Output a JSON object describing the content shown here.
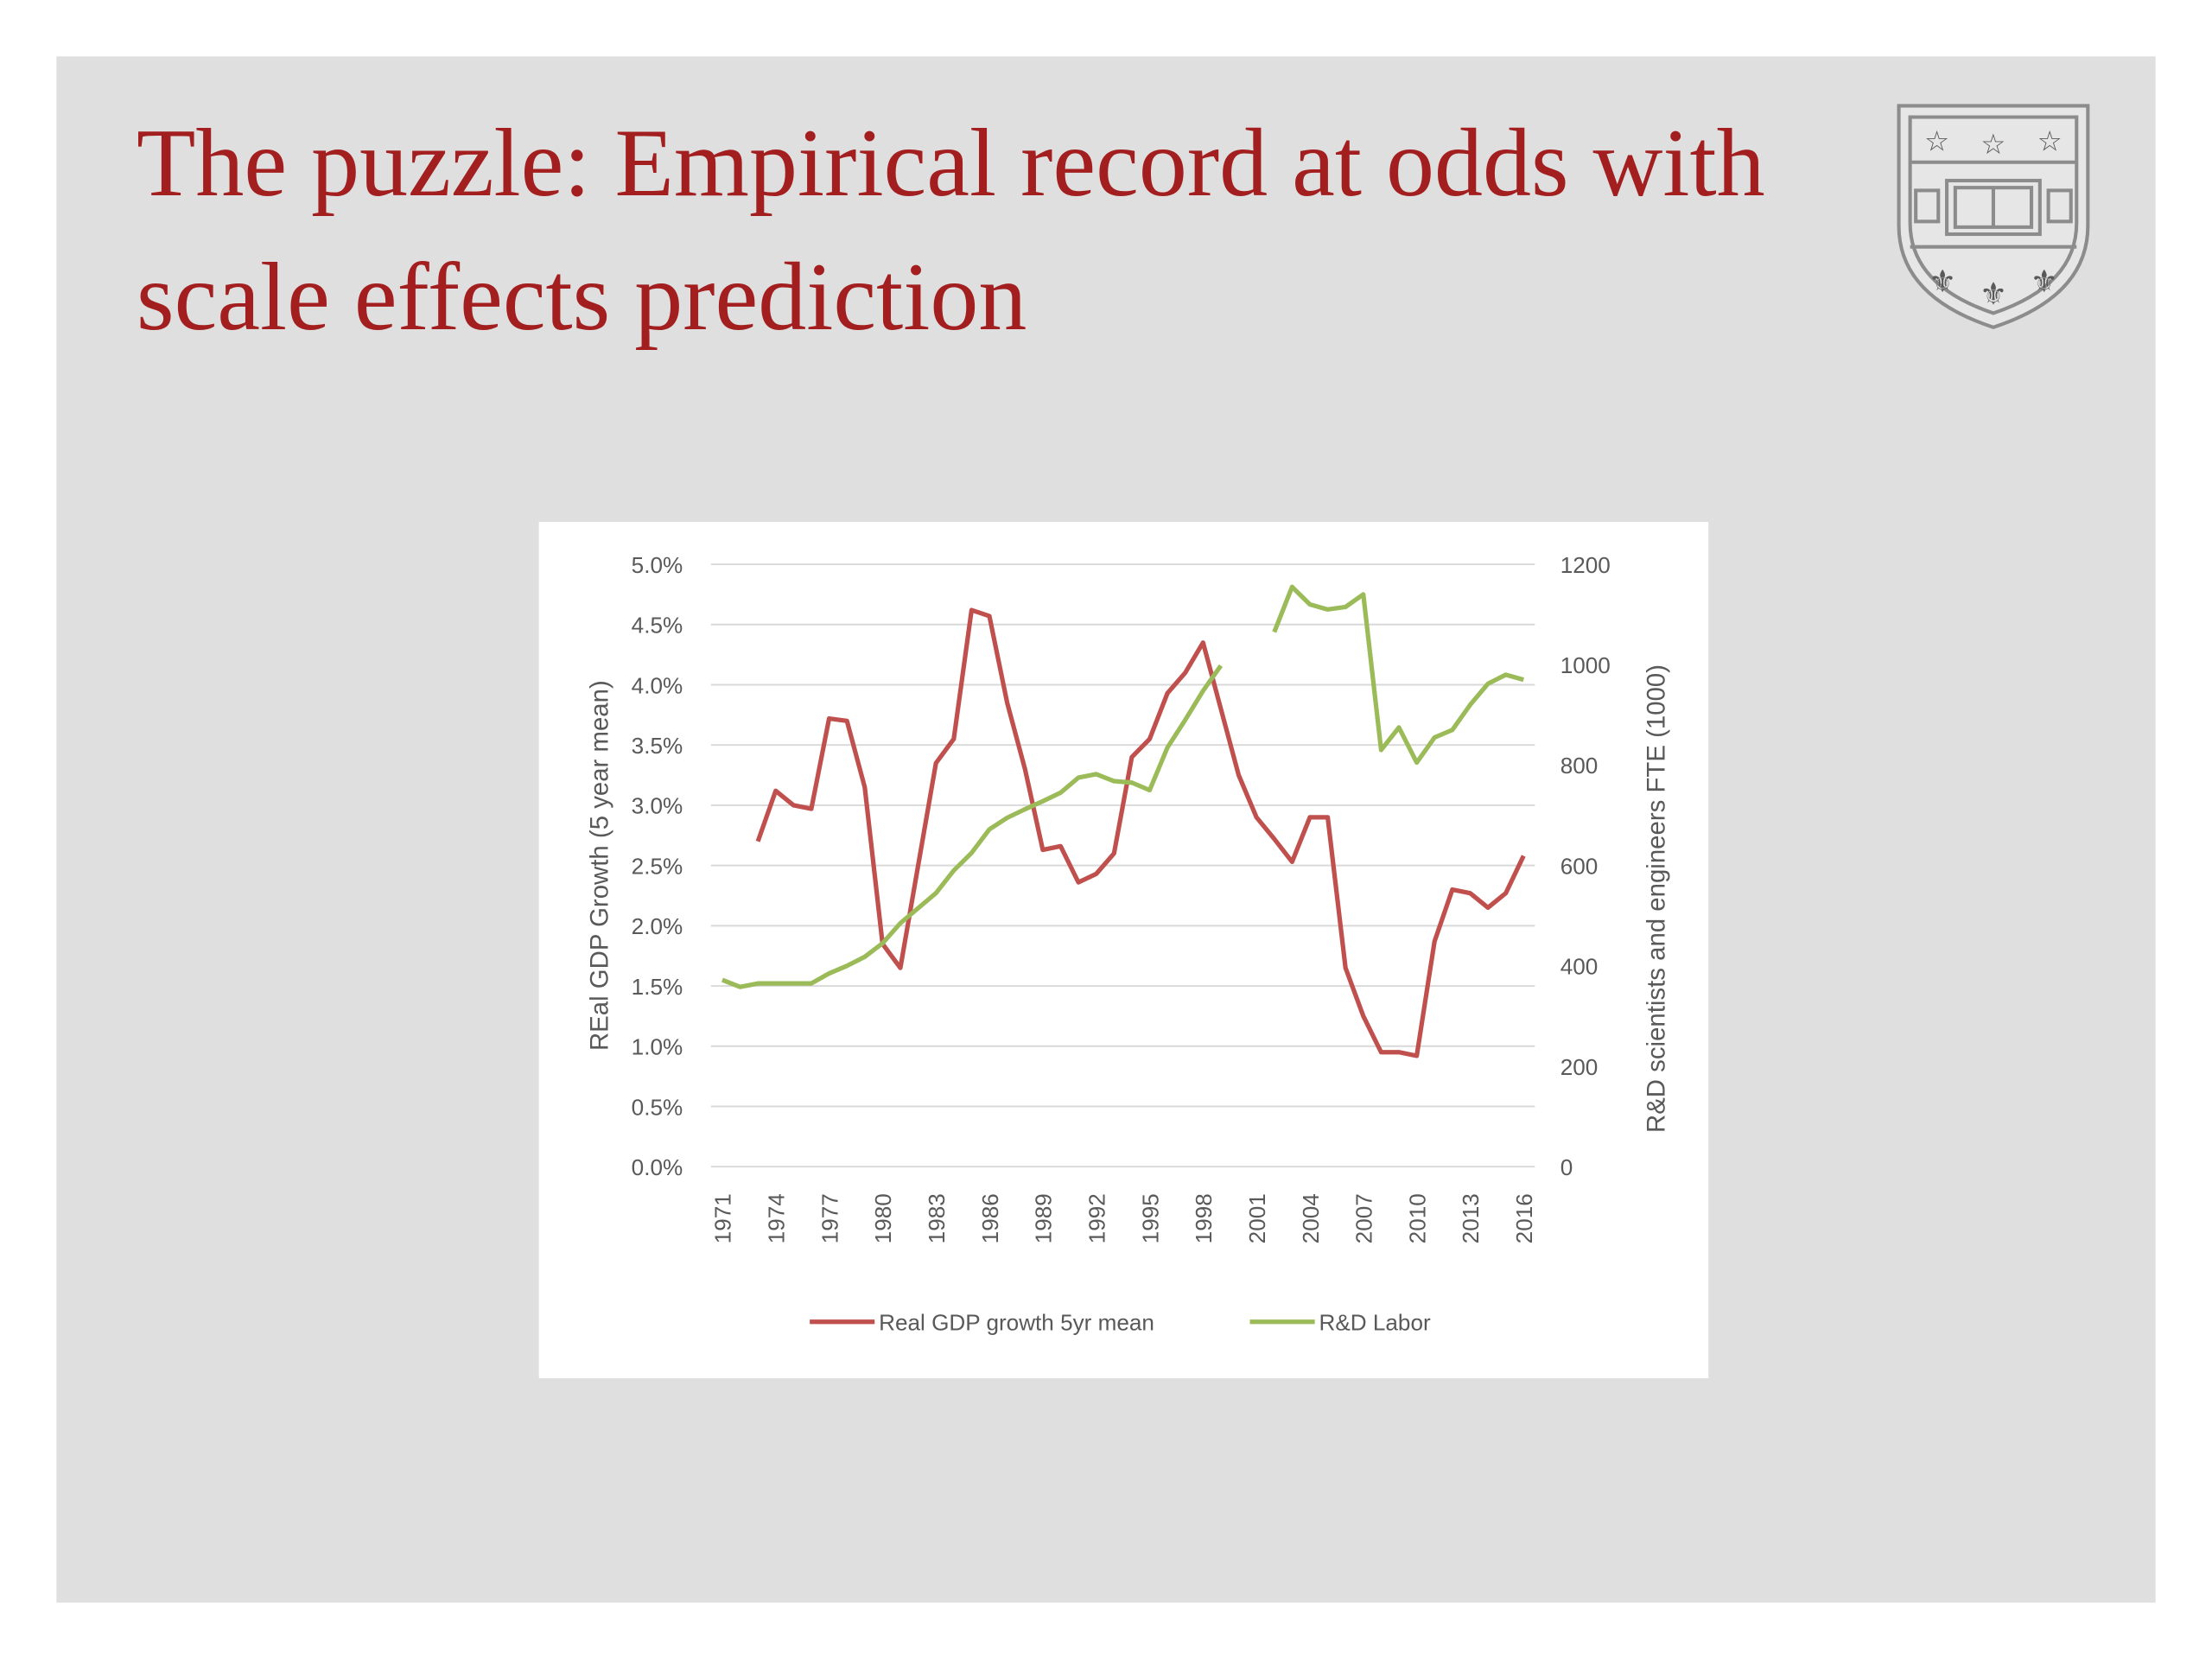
{
  "title": "The puzzle: Empirical record at odds with scale effects prediction",
  "chart_data": {
    "type": "line",
    "categories": [
      "1971",
      null,
      null,
      "1974",
      null,
      null,
      "1977",
      null,
      null,
      "1980",
      null,
      null,
      "1983",
      null,
      null,
      "1986",
      null,
      null,
      "1989",
      null,
      null,
      "1992",
      null,
      null,
      "1995",
      null,
      null,
      "1998",
      null,
      null,
      "2001",
      null,
      null,
      "2004",
      null,
      null,
      "2007",
      null,
      null,
      "2010",
      null,
      null,
      "2013",
      null,
      null,
      "2016"
    ],
    "ylabel": "REal GDP Growth (5 year mean)",
    "y2label": "R&D scientists and engineers FTE (1000)",
    "ylim": [
      0,
      5
    ],
    "yticks": [
      {
        "value": 0,
        "label": "0.0%"
      },
      {
        "value": 0.5,
        "label": "0.5%"
      },
      {
        "value": 1,
        "label": "1.0%"
      },
      {
        "value": 1.5,
        "label": "1.5%"
      },
      {
        "value": 2,
        "label": "2.0%"
      },
      {
        "value": 2.5,
        "label": "2.5%"
      },
      {
        "value": 3,
        "label": "3.0%"
      },
      {
        "value": 3.5,
        "label": "3.5%"
      },
      {
        "value": 4,
        "label": "4.0%"
      },
      {
        "value": 4.5,
        "label": "4.5%"
      },
      {
        "value": 5,
        "label": "5.0%"
      }
    ],
    "y2lim": [
      0,
      1200
    ],
    "y2ticks": [
      0,
      200,
      400,
      600,
      800,
      1000,
      1200
    ],
    "grid": true,
    "legend": "bottom",
    "series": [
      {
        "name": "Real GDP growth 5yr mean",
        "color": "#c0504d",
        "values": [
          null,
          null,
          2.7,
          3.12,
          3.0,
          2.97,
          3.72,
          3.7,
          3.15,
          1.85,
          1.65,
          2.5,
          3.35,
          3.55,
          4.62,
          4.57,
          3.85,
          3.3,
          2.63,
          2.66,
          2.36,
          2.43,
          2.6,
          3.4,
          3.55,
          3.93,
          4.1,
          4.35,
          3.8,
          3.25,
          2.9,
          2.72,
          2.53,
          2.9,
          2.9,
          1.65,
          1.25,
          0.95,
          0.95,
          0.92,
          1.87,
          2.3,
          2.27,
          2.15,
          2.27,
          2.58
        ]
      },
      {
        "name": "R&D Labor",
        "color": "#9bbb59",
        "axis": "y2",
        "values": [
          372,
          358,
          365,
          365,
          365,
          365,
          385,
          400,
          418,
          445,
          485,
          515,
          545,
          590,
          625,
          672,
          695,
          712,
          728,
          745,
          775,
          782,
          768,
          765,
          750,
          835,
          890,
          948,
          998,
          null,
          null,
          1065,
          1155,
          1120,
          1110,
          1115,
          1140,
          830,
          875,
          805,
          855,
          870,
          920,
          962,
          980,
          970
        ]
      }
    ]
  }
}
